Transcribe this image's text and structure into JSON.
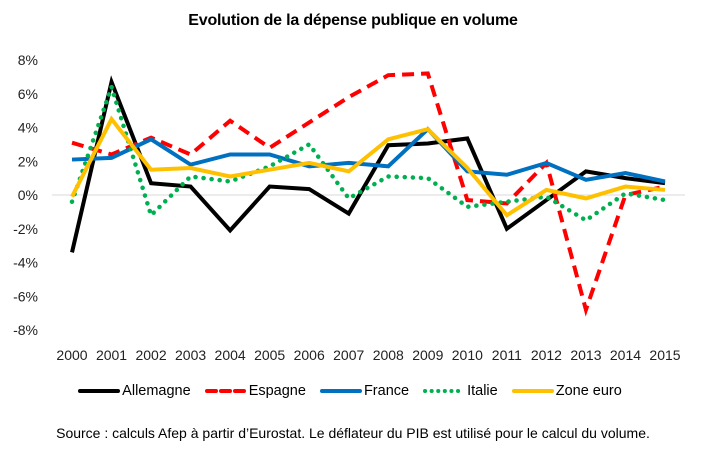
{
  "chart_data": {
    "type": "line",
    "title": "Evolution de la dépense publique en volume",
    "xlabel": "",
    "ylabel": "",
    "x": [
      "2000",
      "2001",
      "2002",
      "2003",
      "2004",
      "2005",
      "2006",
      "2007",
      "2008",
      "2009",
      "2010",
      "2011",
      "2012",
      "2013",
      "2014",
      "2015"
    ],
    "ylim": [
      -8,
      8
    ],
    "yticks": [
      8,
      6,
      4,
      2,
      0,
      -2,
      -4,
      -6,
      -8
    ],
    "ytick_labels": [
      "8%",
      "6%",
      "4%",
      "2%",
      "0%",
      "-2%",
      "-4%",
      "-6%",
      "-8%"
    ],
    "grid": "zero-line only",
    "legend_position": "bottom",
    "series": [
      {
        "name": "Allemagne",
        "color": "#000000",
        "style": "solid",
        "values": [
          -3.4,
          6.7,
          0.7,
          0.5,
          -2.1,
          0.5,
          0.35,
          -1.1,
          2.95,
          3.05,
          3.35,
          -2.0,
          -0.3,
          1.4,
          1.0,
          0.7
        ]
      },
      {
        "name": "Espagne",
        "color": "#FF0000",
        "style": "dashed",
        "values": [
          3.1,
          2.4,
          3.4,
          2.4,
          4.4,
          2.8,
          4.3,
          5.8,
          7.1,
          7.2,
          -0.3,
          -0.5,
          1.9,
          -6.8,
          0.0,
          0.5
        ]
      },
      {
        "name": "France",
        "color": "#0070C0",
        "style": "solid",
        "values": [
          2.1,
          2.2,
          3.3,
          1.8,
          2.4,
          2.4,
          1.7,
          1.9,
          1.7,
          3.9,
          1.4,
          1.2,
          1.9,
          0.9,
          1.3,
          0.8
        ]
      },
      {
        "name": "Italie",
        "color": "#00B050",
        "style": "dotted",
        "values": [
          -0.4,
          6.4,
          -1.2,
          1.1,
          0.8,
          1.7,
          3.0,
          -0.2,
          1.1,
          1.0,
          -0.7,
          -0.4,
          -0.1,
          -1.5,
          0.1,
          -0.3
        ]
      },
      {
        "name": "Zone euro",
        "color": "#FFC000",
        "style": "solid",
        "values": [
          -0.1,
          4.5,
          1.5,
          1.6,
          1.1,
          1.5,
          1.9,
          1.4,
          3.3,
          3.9,
          1.6,
          -1.2,
          0.3,
          -0.2,
          0.5,
          0.3
        ]
      }
    ],
    "source": "Source : calculs Afep à partir d’Eurostat. Le déflateur du PIB est utilisé pour le calcul du volume."
  }
}
